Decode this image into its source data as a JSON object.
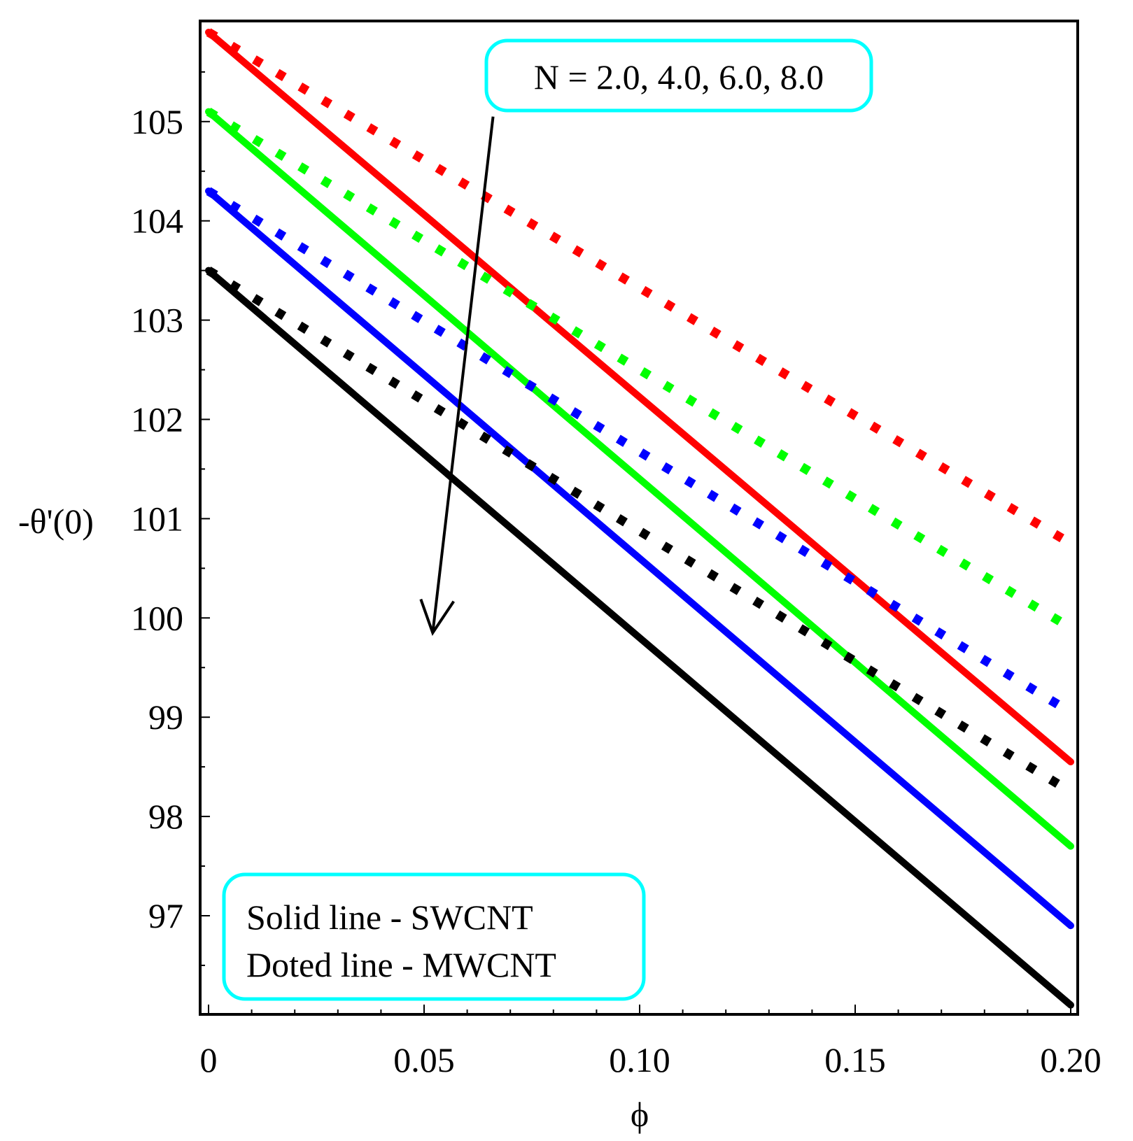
{
  "chart_data": {
    "type": "line",
    "title": "",
    "xlabel": "ϕ",
    "ylabel": "-θ'(0)",
    "xlim": [
      0,
      0.2
    ],
    "ylim": [
      96.0,
      106.0
    ],
    "x_ticks": [
      0,
      0.05,
      0.1,
      0.15,
      0.2
    ],
    "x_tick_labels": [
      "0",
      "0.05",
      "0.10",
      "0.15",
      "0.20"
    ],
    "y_ticks": [
      97,
      98,
      99,
      100,
      101,
      102,
      103,
      104,
      105
    ],
    "y_tick_labels": [
      "97",
      "98",
      "99",
      "100",
      "101",
      "102",
      "103",
      "104",
      "105"
    ],
    "grid": false,
    "colors": {
      "red": "#ff0000",
      "green": "#00ff00",
      "blue": "#0000ff",
      "black": "#000000",
      "annotation_border": "#00ffff"
    },
    "series": [
      {
        "name": "SWCNT N=2.0",
        "style": "solid",
        "color": "#ff0000",
        "x": [
          0,
          0.2
        ],
        "values": [
          105.9,
          98.55
        ]
      },
      {
        "name": "SWCNT N=4.0",
        "style": "solid",
        "color": "#00ff00",
        "x": [
          0,
          0.2
        ],
        "values": [
          105.1,
          97.7
        ]
      },
      {
        "name": "SWCNT N=6.0",
        "style": "solid",
        "color": "#0000ff",
        "x": [
          0,
          0.2
        ],
        "values": [
          104.3,
          96.9
        ]
      },
      {
        "name": "SWCNT N=8.0",
        "style": "solid",
        "color": "#000000",
        "x": [
          0,
          0.2
        ],
        "values": [
          103.5,
          96.1
        ]
      },
      {
        "name": "MWCNT N=2.0",
        "style": "dotted",
        "color": "#ff0000",
        "x": [
          0,
          0.2
        ],
        "values": [
          105.9,
          100.75
        ]
      },
      {
        "name": "MWCNT N=4.0",
        "style": "dotted",
        "color": "#00ff00",
        "x": [
          0,
          0.2
        ],
        "values": [
          105.1,
          99.9
        ]
      },
      {
        "name": "MWCNT N=6.0",
        "style": "dotted",
        "color": "#0000ff",
        "x": [
          0,
          0.2
        ],
        "values": [
          104.3,
          99.05
        ]
      },
      {
        "name": "MWCNT N=8.0",
        "style": "dotted",
        "color": "#000000",
        "x": [
          0,
          0.2
        ],
        "values": [
          103.5,
          98.25
        ]
      }
    ],
    "annotations": {
      "n_values": "N = 2.0, 4.0, 6.0, 8.0",
      "arrow": {
        "from": [
          0.066,
          105.05
        ],
        "to": [
          0.052,
          99.85
        ]
      },
      "legend_line1": "Solid line - SWCNT",
      "legend_line2": "Doted line - MWCNT"
    }
  }
}
